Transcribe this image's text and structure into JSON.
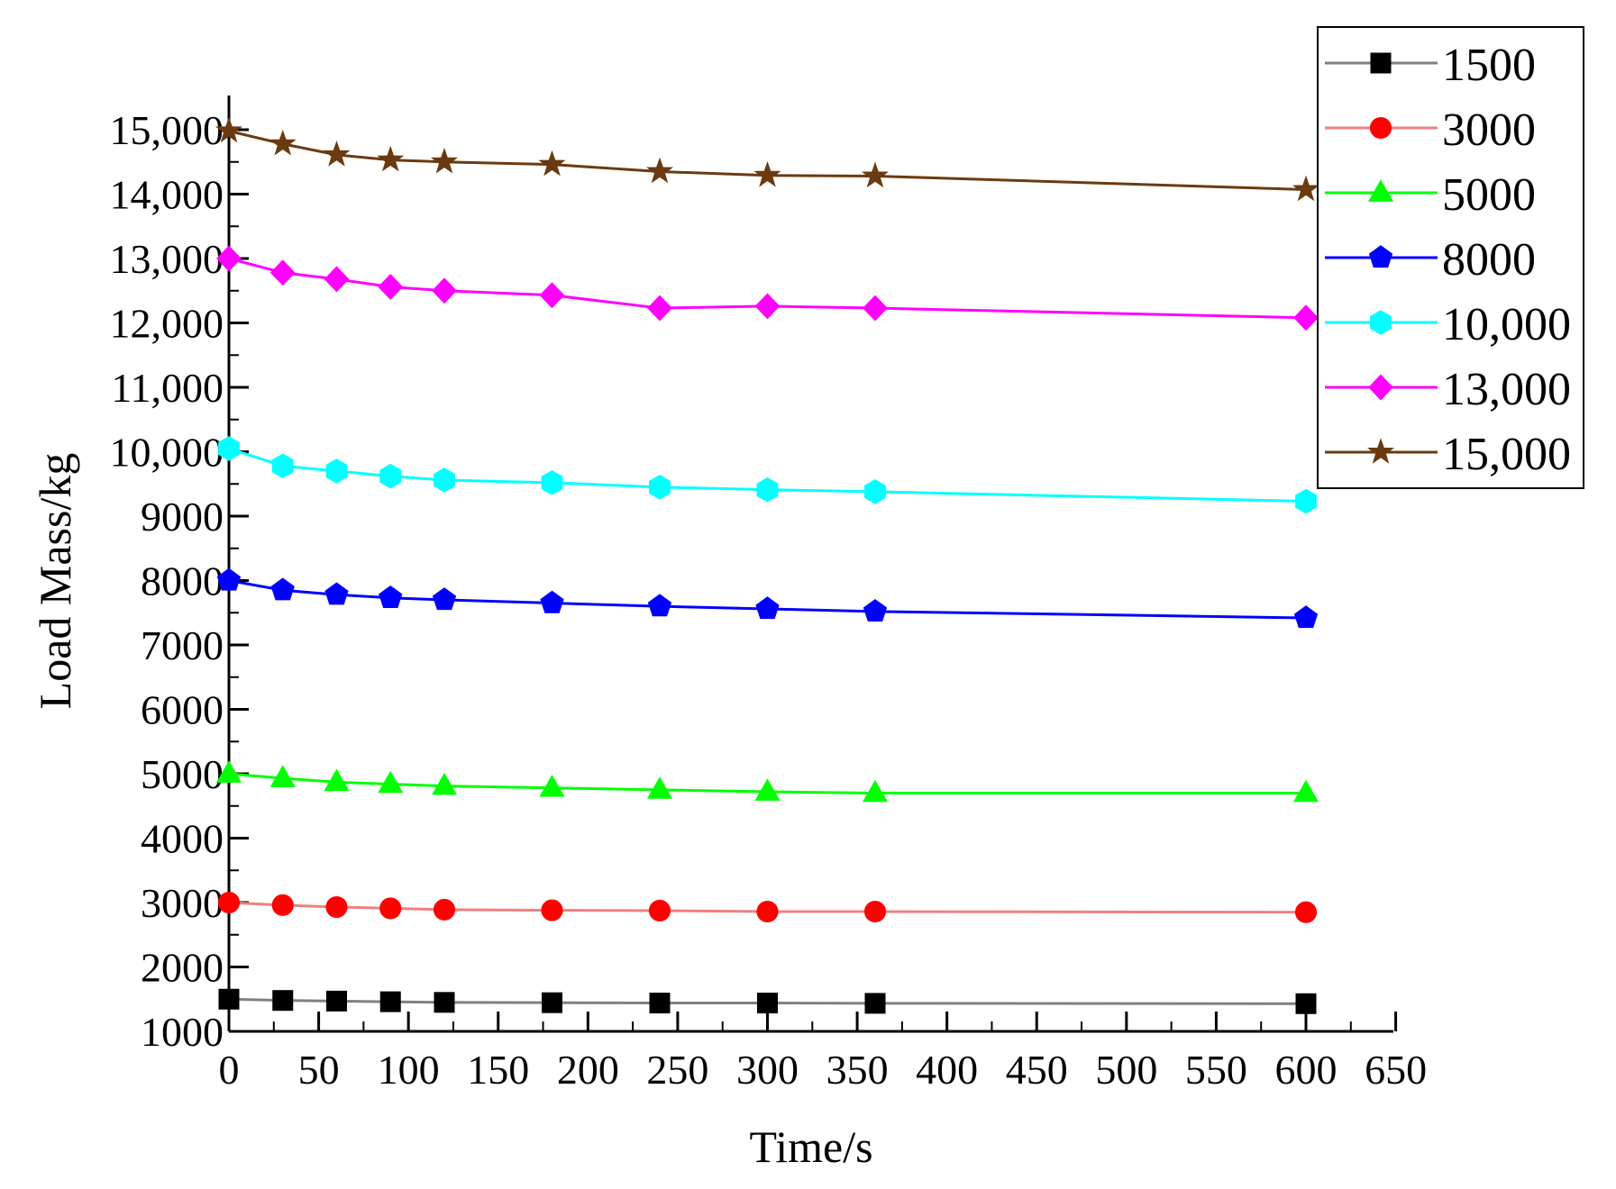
{
  "chart_data": {
    "type": "line",
    "title": "",
    "xlabel": "Time/s",
    "ylabel": "Load Mass/kg",
    "xlim": [
      0,
      650
    ],
    "ylim": [
      1000,
      15500
    ],
    "x_ticks": [
      0,
      50,
      100,
      150,
      200,
      250,
      300,
      350,
      400,
      450,
      500,
      550,
      600,
      650
    ],
    "x_tick_labels": [
      "0",
      "50",
      "100",
      "150",
      "200",
      "250",
      "300",
      "350",
      "400",
      "450",
      "500",
      "550",
      "600",
      "650"
    ],
    "y_ticks": [
      1000,
      2000,
      3000,
      4000,
      5000,
      6000,
      7000,
      8000,
      9000,
      10000,
      11000,
      12000,
      13000,
      14000,
      15000
    ],
    "y_tick_labels": [
      "1000",
      "2000",
      "3000",
      "4000",
      "5000",
      "6000",
      "7000",
      "8000",
      "9000",
      "10,000",
      "11,000",
      "12,000",
      "13,000",
      "14,000",
      "15,000"
    ],
    "grid": false,
    "legend_position": "top-right",
    "x": [
      0,
      30,
      60,
      90,
      120,
      180,
      240,
      300,
      360,
      600
    ],
    "series": [
      {
        "name": "1500",
        "color": "#000000",
        "line_color": "#808080",
        "marker": "square",
        "values": [
          1500,
          1480,
          1470,
          1460,
          1450,
          1445,
          1440,
          1440,
          1435,
          1430
        ]
      },
      {
        "name": "3000",
        "color": "#ff0000",
        "line_color": "#f08080",
        "marker": "circle",
        "values": [
          3000,
          2960,
          2930,
          2910,
          2890,
          2880,
          2875,
          2860,
          2860,
          2850
        ]
      },
      {
        "name": "5000",
        "color": "#00ff00",
        "line_color": "#00ff00",
        "marker": "triangle",
        "values": [
          5000,
          4930,
          4870,
          4840,
          4810,
          4780,
          4750,
          4720,
          4700,
          4700
        ]
      },
      {
        "name": "8000",
        "color": "#0000ff",
        "line_color": "#0000ff",
        "marker": "pentagon",
        "values": [
          8000,
          7850,
          7780,
          7730,
          7700,
          7650,
          7600,
          7560,
          7520,
          7420
        ]
      },
      {
        "name": "10,000",
        "color": "#00ffff",
        "line_color": "#00ffff",
        "marker": "hexagon",
        "values": [
          10050,
          9780,
          9700,
          9620,
          9560,
          9520,
          9450,
          9410,
          9380,
          9230
        ]
      },
      {
        "name": "13,000",
        "color": "#ff00ff",
        "line_color": "#ff00ff",
        "marker": "diamond",
        "values": [
          13000,
          12780,
          12680,
          12560,
          12500,
          12430,
          12230,
          12260,
          12230,
          12080
        ]
      },
      {
        "name": "15,000",
        "color": "#6b3a10",
        "line_color": "#6b3a10",
        "marker": "star",
        "values": [
          14980,
          14780,
          14610,
          14530,
          14500,
          14460,
          14350,
          14290,
          14280,
          14070
        ]
      }
    ]
  }
}
